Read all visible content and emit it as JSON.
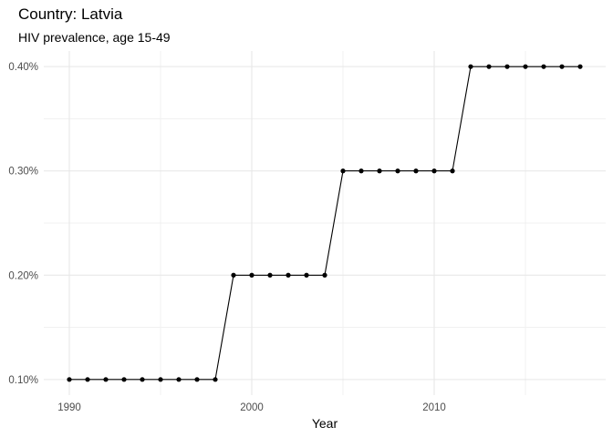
{
  "chart_data": {
    "type": "line",
    "title": "Country: Latvia",
    "subtitle": "HIV prevalence, age 15-49",
    "xlabel": "Year",
    "ylabel": "",
    "x": [
      1990,
      1991,
      1992,
      1993,
      1994,
      1995,
      1996,
      1997,
      1998,
      1999,
      2000,
      2001,
      2002,
      2003,
      2004,
      2005,
      2006,
      2007,
      2008,
      2009,
      2010,
      2011,
      2012,
      2013,
      2014,
      2015,
      2016,
      2017,
      2018
    ],
    "values": [
      0.1,
      0.1,
      0.1,
      0.1,
      0.1,
      0.1,
      0.1,
      0.1,
      0.1,
      0.2,
      0.2,
      0.2,
      0.2,
      0.2,
      0.2,
      0.3,
      0.3,
      0.3,
      0.3,
      0.3,
      0.3,
      0.3,
      0.4,
      0.4,
      0.4,
      0.4,
      0.4,
      0.4,
      0.4
    ],
    "xticks": [
      1990,
      2000,
      2010
    ],
    "xtick_labels": [
      "1990",
      "2000",
      "2010"
    ],
    "yticks": [
      0.1,
      0.2,
      0.3,
      0.4
    ],
    "ytick_labels": [
      "0.10%",
      "0.20%",
      "0.30%",
      "0.40%"
    ],
    "xlim": [
      1988.6,
      2019.4
    ],
    "ylim": [
      0.085,
      0.415
    ],
    "grid": true,
    "legend": "none",
    "colors": {
      "line": "#000000",
      "points": "#000000",
      "grid": "#e6e6e6"
    }
  }
}
